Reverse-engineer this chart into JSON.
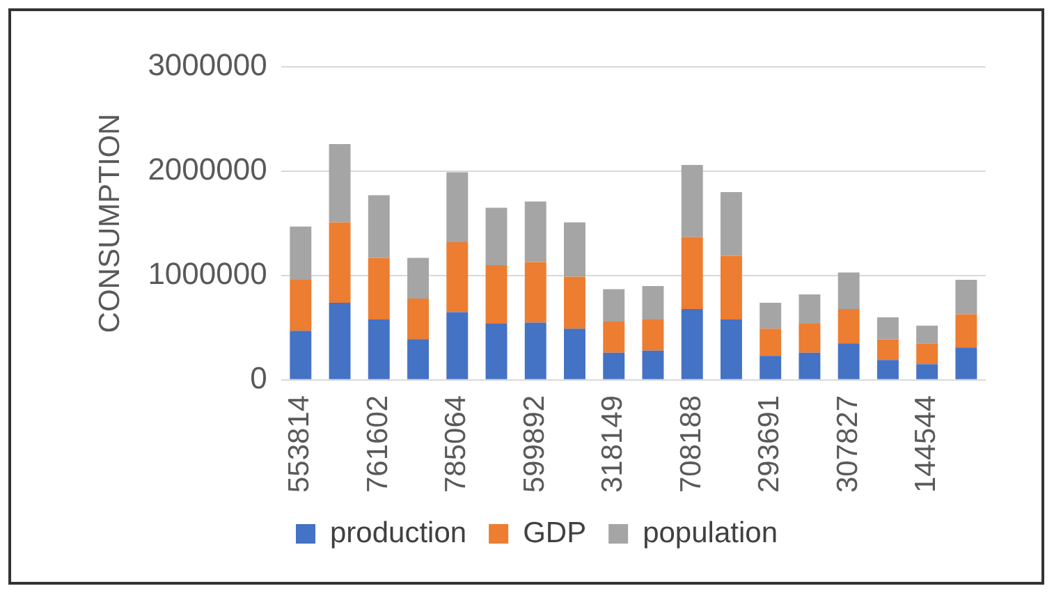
{
  "chart_data": {
    "type": "bar",
    "stacked": true,
    "ylabel": "CONSUMPTION",
    "categories": [
      "553814",
      null,
      "761602",
      null,
      "785064",
      null,
      "599892",
      null,
      "318149",
      null,
      "708188",
      null,
      "293691",
      null,
      "307827",
      null,
      "144544",
      null
    ],
    "series": [
      {
        "name": "production",
        "color": "#4472c4",
        "values": [
          470000,
          740000,
          580000,
          390000,
          650000,
          540000,
          550000,
          490000,
          260000,
          280000,
          680000,
          580000,
          230000,
          260000,
          350000,
          190000,
          150000,
          310000
        ]
      },
      {
        "name": "GDP",
        "color": "#ed7d31",
        "values": [
          490000,
          770000,
          590000,
          390000,
          670000,
          560000,
          580000,
          500000,
          300000,
          300000,
          690000,
          610000,
          260000,
          280000,
          330000,
          200000,
          200000,
          320000
        ]
      },
      {
        "name": "population",
        "color": "#a5a5a5",
        "values": [
          510000,
          750000,
          600000,
          390000,
          670000,
          550000,
          580000,
          520000,
          310000,
          320000,
          690000,
          610000,
          250000,
          280000,
          350000,
          210000,
          170000,
          330000
        ]
      }
    ],
    "ylim": [
      0,
      3000000
    ],
    "yticks": [
      0,
      1000000,
      2000000,
      3000000
    ],
    "grid": "y",
    "legend": "bottom"
  }
}
